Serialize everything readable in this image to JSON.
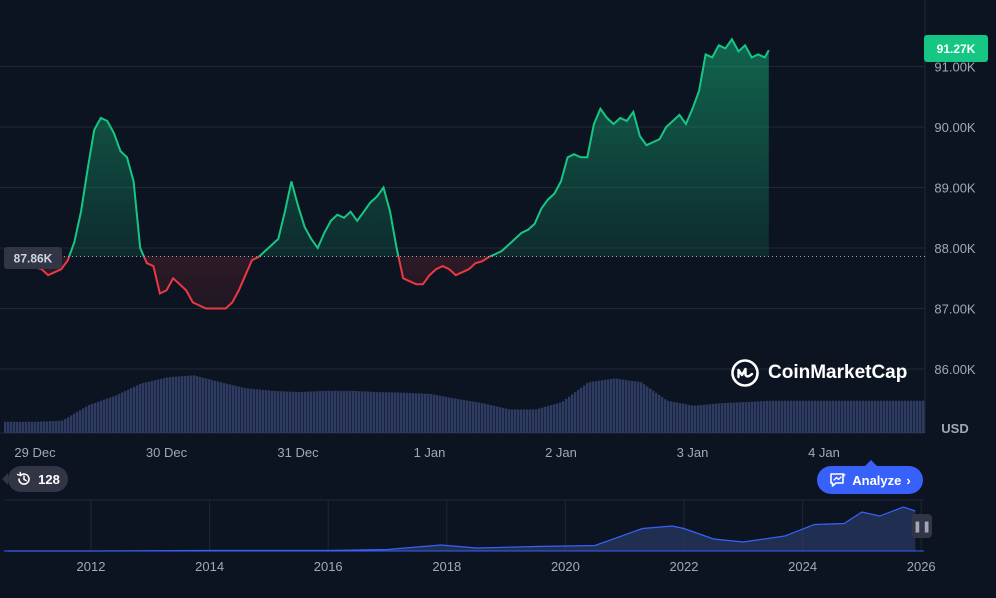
{
  "chart_data": [
    {
      "type": "line",
      "name": "price-chart",
      "title": "",
      "currency_label": "USD",
      "x_ticks": [
        "29 Dec",
        "30 Dec",
        "31 Dec",
        "1 Jan",
        "2 Jan",
        "3 Jan",
        "4 Jan"
      ],
      "y_ticks": [
        "86.00K",
        "87.00K",
        "88.00K",
        "89.00K",
        "90.00K",
        "91.00K"
      ],
      "ylim": [
        85000,
        92000
      ],
      "baseline": {
        "value": 87860,
        "label": "87.86K"
      },
      "current_price": {
        "value": 91270,
        "label": "91.27K"
      },
      "up_color": "#16c784",
      "down_color": "#ea3943",
      "price_series": [
        [
          0.0,
          87830
        ],
        [
          0.05,
          87650
        ],
        [
          0.1,
          87550
        ],
        [
          0.15,
          87600
        ],
        [
          0.2,
          87650
        ],
        [
          0.25,
          87800
        ],
        [
          0.3,
          88100
        ],
        [
          0.35,
          88600
        ],
        [
          0.4,
          89300
        ],
        [
          0.45,
          89950
        ],
        [
          0.5,
          90150
        ],
        [
          0.55,
          90100
        ],
        [
          0.6,
          89900
        ],
        [
          0.65,
          89600
        ],
        [
          0.7,
          89500
        ],
        [
          0.75,
          89100
        ],
        [
          0.8,
          88000
        ],
        [
          0.85,
          87750
        ],
        [
          0.9,
          87700
        ],
        [
          0.95,
          87250
        ],
        [
          1.0,
          87300
        ],
        [
          1.05,
          87500
        ],
        [
          1.1,
          87400
        ],
        [
          1.15,
          87300
        ],
        [
          1.2,
          87100
        ],
        [
          1.25,
          87050
        ],
        [
          1.3,
          87000
        ],
        [
          1.35,
          87000
        ],
        [
          1.4,
          87000
        ],
        [
          1.45,
          87000
        ],
        [
          1.5,
          87100
        ],
        [
          1.55,
          87300
        ],
        [
          1.6,
          87550
        ],
        [
          1.65,
          87800
        ],
        [
          1.7,
          87850
        ],
        [
          1.75,
          87950
        ],
        [
          1.8,
          88050
        ],
        [
          1.85,
          88150
        ],
        [
          1.9,
          88600
        ],
        [
          1.95,
          89100
        ],
        [
          2.0,
          88700
        ],
        [
          2.05,
          88350
        ],
        [
          2.1,
          88150
        ],
        [
          2.15,
          88000
        ],
        [
          2.2,
          88250
        ],
        [
          2.25,
          88450
        ],
        [
          2.3,
          88550
        ],
        [
          2.35,
          88500
        ],
        [
          2.4,
          88600
        ],
        [
          2.45,
          88450
        ],
        [
          2.5,
          88600
        ],
        [
          2.55,
          88750
        ],
        [
          2.6,
          88850
        ],
        [
          2.65,
          89000
        ],
        [
          2.7,
          88600
        ],
        [
          2.75,
          88000
        ],
        [
          2.8,
          87500
        ],
        [
          2.85,
          87450
        ],
        [
          2.9,
          87400
        ],
        [
          2.95,
          87400
        ],
        [
          3.0,
          87550
        ],
        [
          3.05,
          87650
        ],
        [
          3.1,
          87700
        ],
        [
          3.15,
          87650
        ],
        [
          3.2,
          87550
        ],
        [
          3.25,
          87600
        ],
        [
          3.3,
          87650
        ],
        [
          3.35,
          87750
        ],
        [
          3.4,
          87780
        ],
        [
          3.45,
          87850
        ],
        [
          3.5,
          87900
        ],
        [
          3.55,
          87950
        ],
        [
          3.6,
          88050
        ],
        [
          3.65,
          88150
        ],
        [
          3.7,
          88250
        ],
        [
          3.75,
          88300
        ],
        [
          3.8,
          88400
        ],
        [
          3.85,
          88650
        ],
        [
          3.9,
          88800
        ],
        [
          3.95,
          88900
        ],
        [
          4.0,
          89100
        ],
        [
          4.05,
          89500
        ],
        [
          4.1,
          89550
        ],
        [
          4.15,
          89500
        ],
        [
          4.2,
          89500
        ],
        [
          4.25,
          90050
        ],
        [
          4.3,
          90300
        ],
        [
          4.35,
          90150
        ],
        [
          4.4,
          90050
        ],
        [
          4.45,
          90150
        ],
        [
          4.5,
          90100
        ],
        [
          4.55,
          90250
        ],
        [
          4.6,
          89850
        ],
        [
          4.65,
          89700
        ],
        [
          4.7,
          89750
        ],
        [
          4.75,
          89800
        ],
        [
          4.8,
          90000
        ],
        [
          4.85,
          90100
        ],
        [
          4.9,
          90200
        ],
        [
          4.95,
          90050
        ],
        [
          5.0,
          90300
        ],
        [
          5.05,
          90600
        ],
        [
          5.1,
          91200
        ],
        [
          5.15,
          91150
        ],
        [
          5.2,
          91350
        ],
        [
          5.25,
          91300
        ],
        [
          5.3,
          91450
        ],
        [
          5.35,
          91250
        ],
        [
          5.4,
          91350
        ],
        [
          5.45,
          91150
        ],
        [
          5.5,
          91200
        ],
        [
          5.55,
          91150
        ],
        [
          5.58,
          91270
        ]
      ],
      "volume_series": [
        [
          0.0,
          0.18
        ],
        [
          0.2,
          0.2
        ],
        [
          0.4,
          0.45
        ],
        [
          0.6,
          0.6
        ],
        [
          0.8,
          0.8
        ],
        [
          1.0,
          0.9
        ],
        [
          1.2,
          0.93
        ],
        [
          1.4,
          0.82
        ],
        [
          1.6,
          0.72
        ],
        [
          1.8,
          0.68
        ],
        [
          2.0,
          0.66
        ],
        [
          2.2,
          0.68
        ],
        [
          2.4,
          0.68
        ],
        [
          2.6,
          0.66
        ],
        [
          2.8,
          0.65
        ],
        [
          3.0,
          0.63
        ],
        [
          3.2,
          0.55
        ],
        [
          3.4,
          0.48
        ],
        [
          3.6,
          0.38
        ],
        [
          3.8,
          0.38
        ],
        [
          4.0,
          0.5
        ],
        [
          4.2,
          0.82
        ],
        [
          4.4,
          0.88
        ],
        [
          4.6,
          0.82
        ],
        [
          4.8,
          0.52
        ],
        [
          5.0,
          0.44
        ],
        [
          5.2,
          0.48
        ],
        [
          5.4,
          0.5
        ],
        [
          5.58,
          0.52
        ]
      ]
    },
    {
      "type": "area",
      "name": "history-overview",
      "x_ticks": [
        "2012",
        "2014",
        "2016",
        "2018",
        "2020",
        "2022",
        "2024",
        "2026"
      ],
      "series": [
        [
          2010.6,
          0.0
        ],
        [
          2012.0,
          0.0
        ],
        [
          2014.0,
          0.01
        ],
        [
          2016.0,
          0.01
        ],
        [
          2017.0,
          0.03
        ],
        [
          2017.9,
          0.12
        ],
        [
          2018.5,
          0.06
        ],
        [
          2019.5,
          0.09
        ],
        [
          2020.5,
          0.11
        ],
        [
          2021.3,
          0.45
        ],
        [
          2021.8,
          0.5
        ],
        [
          2022.0,
          0.45
        ],
        [
          2022.5,
          0.24
        ],
        [
          2023.0,
          0.18
        ],
        [
          2023.7,
          0.3
        ],
        [
          2024.2,
          0.53
        ],
        [
          2024.7,
          0.55
        ],
        [
          2025.0,
          0.78
        ],
        [
          2025.3,
          0.7
        ],
        [
          2025.7,
          0.88
        ],
        [
          2025.9,
          0.8
        ]
      ]
    }
  ],
  "ui": {
    "watermark": "CoinMarketCap",
    "analyze_label": "Analyze",
    "history_count": "128"
  }
}
